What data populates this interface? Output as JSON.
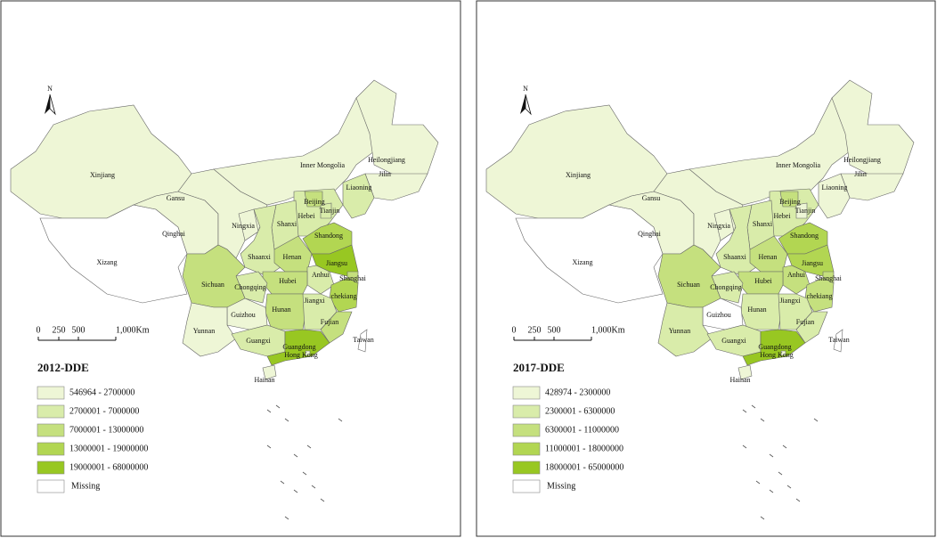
{
  "maps": [
    {
      "title": "2012-DDE",
      "north": "N",
      "scale": [
        "0",
        "250",
        "500",
        "1,000Km"
      ],
      "missing": "Missing",
      "legend": [
        {
          "label": "546964  -  2700000",
          "color": "#eef6d6"
        },
        {
          "label": "2700001  -  7000000",
          "color": "#d9ecaa"
        },
        {
          "label": "7000001  -  13000000",
          "color": "#c5e07e"
        },
        {
          "label": "13000001  -  19000000",
          "color": "#b2d652"
        },
        {
          "label": "19000001  -  68000000",
          "color": "#98c722"
        }
      ],
      "provinces": [
        {
          "name": "Xinjiang",
          "color": "#eef6d6"
        },
        {
          "name": "Xizang",
          "color": "#ffffff"
        },
        {
          "name": "Qinghai",
          "color": "#eef6d6"
        },
        {
          "name": "Gansu",
          "color": "#eef6d6"
        },
        {
          "name": "Inner Mongolia",
          "color": "#eef6d6"
        },
        {
          "name": "Heilongjiang",
          "color": "#eef6d6"
        },
        {
          "name": "Jilin",
          "color": "#eef6d6"
        },
        {
          "name": "Liaoning",
          "color": "#d9ecaa"
        },
        {
          "name": "Hebei",
          "color": "#d9ecaa"
        },
        {
          "name": "Beijing",
          "color": "#c5e07e"
        },
        {
          "name": "Tianjin",
          "color": "#d9ecaa"
        },
        {
          "name": "Shanxi",
          "color": "#d9ecaa"
        },
        {
          "name": "Ningxia",
          "color": "#eef6d6"
        },
        {
          "name": "Shaanxi",
          "color": "#d9ecaa"
        },
        {
          "name": "Shandong",
          "color": "#b2d652"
        },
        {
          "name": "Henan",
          "color": "#c5e07e"
        },
        {
          "name": "Jiangsu",
          "color": "#98c722"
        },
        {
          "name": "Anhui",
          "color": "#d9ecaa"
        },
        {
          "name": "Shanghai",
          "color": "#c5e07e"
        },
        {
          "name": "chekiang",
          "color": "#b2d652"
        },
        {
          "name": "Hubei",
          "color": "#c5e07e"
        },
        {
          "name": "Chongqing",
          "color": "#d9ecaa"
        },
        {
          "name": "Sichuan",
          "color": "#c5e07e"
        },
        {
          "name": "Hunan",
          "color": "#c5e07e"
        },
        {
          "name": "Jiangxi",
          "color": "#d9ecaa"
        },
        {
          "name": "Fujian",
          "color": "#c5e07e"
        },
        {
          "name": "Guizhou",
          "color": "#eef6d6"
        },
        {
          "name": "Yunnan",
          "color": "#eef6d6"
        },
        {
          "name": "Guangxi",
          "color": "#d9ecaa"
        },
        {
          "name": "Guangdong",
          "color": "#98c722"
        },
        {
          "name": "Hong Kong",
          "color": "#eef6d6"
        },
        {
          "name": "Hainan",
          "color": "#eef6d6"
        },
        {
          "name": "Taiwan",
          "color": "#ffffff"
        }
      ]
    },
    {
      "title": "2017-DDE",
      "north": "N",
      "scale": [
        "0",
        "250",
        "500",
        "1,000Km"
      ],
      "missing": "Missing",
      "legend": [
        {
          "label": "428974  -  2300000",
          "color": "#eef6d6"
        },
        {
          "label": "2300001  -  6300000",
          "color": "#d9ecaa"
        },
        {
          "label": "6300001  -  11000000",
          "color": "#c5e07e"
        },
        {
          "label": "11000001  -  18000000",
          "color": "#b2d652"
        },
        {
          "label": "18000001  -  65000000",
          "color": "#98c722"
        }
      ],
      "provinces": [
        {
          "name": "Xinjiang",
          "color": "#eef6d6"
        },
        {
          "name": "Xizang",
          "color": "#ffffff"
        },
        {
          "name": "Qinghai",
          "color": "#eef6d6"
        },
        {
          "name": "Gansu",
          "color": "#eef6d6"
        },
        {
          "name": "Inner Mongolia",
          "color": "#eef6d6"
        },
        {
          "name": "Heilongjiang",
          "color": "#eef6d6"
        },
        {
          "name": "Jilin",
          "color": "#eef6d6"
        },
        {
          "name": "Liaoning",
          "color": "#eef6d6"
        },
        {
          "name": "Hebei",
          "color": "#d9ecaa"
        },
        {
          "name": "Beijing",
          "color": "#c5e07e"
        },
        {
          "name": "Tianjin",
          "color": "#eef6d6"
        },
        {
          "name": "Shanxi",
          "color": "#d9ecaa"
        },
        {
          "name": "Ningxia",
          "color": "#eef6d6"
        },
        {
          "name": "Shaanxi",
          "color": "#d9ecaa"
        },
        {
          "name": "Shandong",
          "color": "#b2d652"
        },
        {
          "name": "Henan",
          "color": "#c5e07e"
        },
        {
          "name": "Jiangsu",
          "color": "#b2d652"
        },
        {
          "name": "Anhui",
          "color": "#c5e07e"
        },
        {
          "name": "Shanghai",
          "color": "#c5e07e"
        },
        {
          "name": "chekiang",
          "color": "#c5e07e"
        },
        {
          "name": "Hubei",
          "color": "#c5e07e"
        },
        {
          "name": "Chongqing",
          "color": "#d9ecaa"
        },
        {
          "name": "Sichuan",
          "color": "#c5e07e"
        },
        {
          "name": "Hunan",
          "color": "#d9ecaa"
        },
        {
          "name": "Jiangxi",
          "color": "#d9ecaa"
        },
        {
          "name": "Fujian",
          "color": "#d9ecaa"
        },
        {
          "name": "Guizhou",
          "color": "#ffffff"
        },
        {
          "name": "Yunnan",
          "color": "#d9ecaa"
        },
        {
          "name": "Guangxi",
          "color": "#d9ecaa"
        },
        {
          "name": "Guangdong",
          "color": "#98c722"
        },
        {
          "name": "Hong Kong",
          "color": "#eef6d6"
        },
        {
          "name": "Hainan",
          "color": "#eef6d6"
        },
        {
          "name": "Taiwan",
          "color": "#ffffff"
        }
      ]
    }
  ]
}
